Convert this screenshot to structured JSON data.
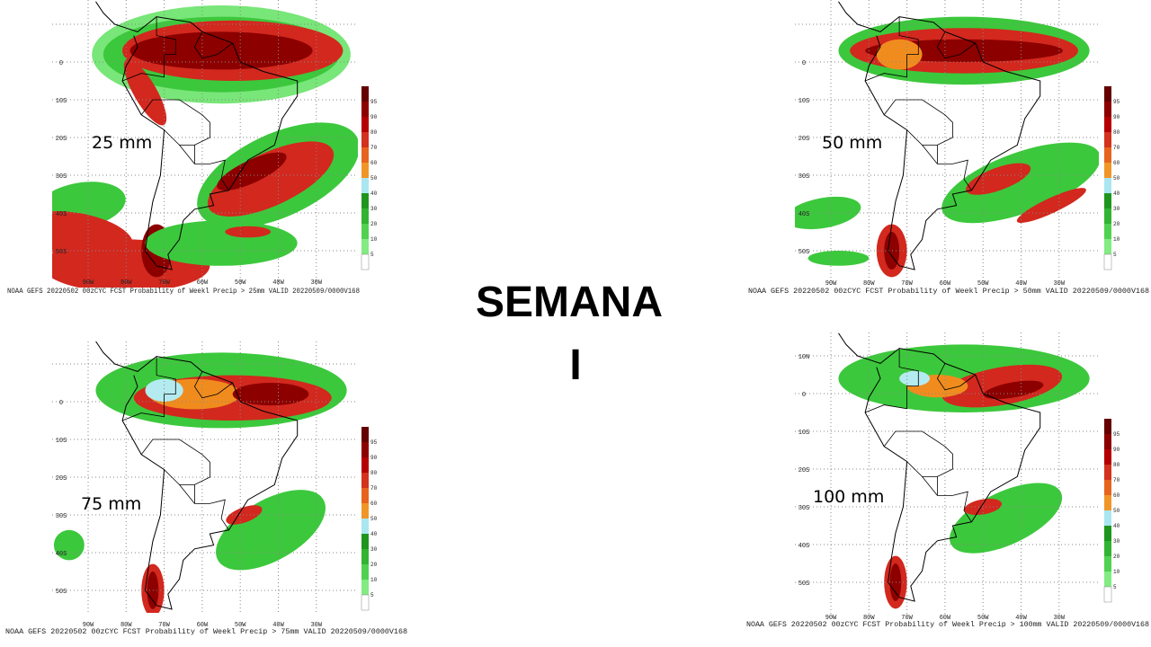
{
  "title": "SEMANA",
  "subtitle": "I",
  "lat_labels": [
    "10N",
    "0",
    "10S",
    "20S",
    "30S",
    "40S",
    "50S"
  ],
  "lon_labels": [
    "90W",
    "80W",
    "70W",
    "60W",
    "50W",
    "40W",
    "30W"
  ],
  "colorbar_labels": [
    "95",
    "90",
    "80",
    "70",
    "60",
    "50",
    "40",
    "30",
    "20",
    "10",
    "5"
  ],
  "panels": [
    {
      "threshold": "25 mm",
      "caption": "NOAA GEFS 20220502 00zCYC FCST Probability of Weekl Precip > 25mm  VALID 20220509/0000V168"
    },
    {
      "threshold": "50 mm",
      "caption": "NOAA GEFS 20220502 00zCYC FCST Probability of Weekl Precip > 50mm  VALID 20220509/0000V168"
    },
    {
      "threshold": "75 mm",
      "caption": "NOAA GEFS 20220502 00zCYC FCST Probability of Weekl Precip > 75mm  VALID 20220509/0000V168"
    },
    {
      "threshold": "100 mm",
      "caption": "NOAA GEFS 20220502 00zCYC FCST Probability of Weekl Precip > 100mm  VALID 20220509/0000V168"
    }
  ]
}
